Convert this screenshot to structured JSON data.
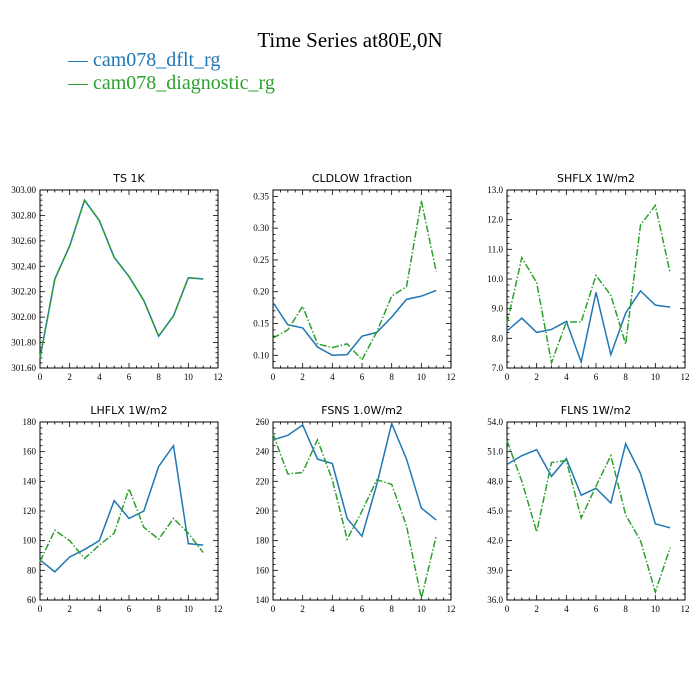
{
  "title": "Time Series at80E,0N",
  "legend": [
    {
      "label": "cam078_dflt_rg",
      "color": "#1f77b4",
      "dash": "solid"
    },
    {
      "label": "cam078_diagnostic_rg",
      "color": "#2ca02c",
      "dash": "dashdot"
    }
  ],
  "chart_data": [
    {
      "type": "line",
      "title": "TS   1K",
      "x": [
        0,
        1,
        2,
        3,
        4,
        5,
        6,
        7,
        8,
        9,
        10,
        11
      ],
      "xlim": [
        0,
        12
      ],
      "xticks": [
        0,
        2,
        4,
        6,
        8,
        10,
        12
      ],
      "ylim": [
        301.6,
        303.0
      ],
      "yticks": [
        301.6,
        301.8,
        302.0,
        302.2,
        302.4,
        302.6,
        302.8,
        303.0
      ],
      "ytick_labels": [
        "301.60",
        "301.80",
        "302.00",
        "302.20",
        "302.40",
        "302.60",
        "302.80",
        "303.00"
      ],
      "series": [
        {
          "name": "cam078_dflt_rg",
          "values": [
            301.68,
            302.3,
            302.56,
            302.92,
            302.76,
            302.47,
            302.32,
            302.13,
            301.85,
            302.01,
            302.31,
            302.3
          ]
        },
        {
          "name": "cam078_diagnostic_rg",
          "values": [
            301.68,
            302.3,
            302.56,
            302.92,
            302.76,
            302.47,
            302.32,
            302.13,
            301.85,
            302.01,
            302.31,
            302.3
          ]
        }
      ]
    },
    {
      "type": "line",
      "title": "CLDLOW   1fraction",
      "x": [
        0,
        1,
        2,
        3,
        4,
        5,
        6,
        7,
        8,
        9,
        10,
        11
      ],
      "xlim": [
        0,
        12
      ],
      "xticks": [
        0,
        2,
        4,
        6,
        8,
        10,
        12
      ],
      "ylim": [
        0.08,
        0.36
      ],
      "yticks": [
        0.1,
        0.15,
        0.2,
        0.25,
        0.3,
        0.35
      ],
      "ytick_labels": [
        "0.10",
        "0.15",
        "0.20",
        "0.25",
        "0.30",
        "0.35"
      ],
      "series": [
        {
          "name": "cam078_dflt_rg",
          "values": [
            0.183,
            0.148,
            0.143,
            0.113,
            0.1,
            0.101,
            0.13,
            0.136,
            0.16,
            0.188,
            0.193,
            0.202
          ]
        },
        {
          "name": "cam078_diagnostic_rg",
          "values": [
            0.127,
            0.14,
            0.177,
            0.118,
            0.112,
            0.118,
            0.093,
            0.137,
            0.193,
            0.208,
            0.343,
            0.232
          ]
        }
      ]
    },
    {
      "type": "line",
      "title": "SHFLX   1W/m2",
      "x": [
        0,
        1,
        2,
        3,
        4,
        5,
        6,
        7,
        8,
        9,
        10,
        11
      ],
      "xlim": [
        0,
        12
      ],
      "xticks": [
        0,
        2,
        4,
        6,
        8,
        10,
        12
      ],
      "ylim": [
        7.0,
        13.0
      ],
      "yticks": [
        7.0,
        8.0,
        9.0,
        10.0,
        11.0,
        12.0,
        13.0
      ],
      "ytick_labels": [
        "7.0",
        "8.0",
        "9.0",
        "10.0",
        "11.0",
        "12.0",
        "13.0"
      ],
      "series": [
        {
          "name": "cam078_dflt_rg",
          "values": [
            8.25,
            8.68,
            8.2,
            8.3,
            8.57,
            7.2,
            9.55,
            7.45,
            8.85,
            9.6,
            9.12,
            9.05
          ]
        },
        {
          "name": "cam078_diagnostic_rg",
          "values": [
            8.5,
            10.72,
            9.88,
            7.18,
            8.55,
            8.55,
            10.12,
            9.45,
            7.8,
            11.82,
            12.48,
            10.2
          ]
        }
      ]
    },
    {
      "type": "line",
      "title": "LHFLX   1W/m2",
      "x": [
        0,
        1,
        2,
        3,
        4,
        5,
        6,
        7,
        8,
        9,
        10,
        11
      ],
      "xlim": [
        0,
        12
      ],
      "xticks": [
        0,
        2,
        4,
        6,
        8,
        10,
        12
      ],
      "ylim": [
        60,
        180
      ],
      "yticks": [
        60,
        80,
        100,
        120,
        140,
        160,
        180
      ],
      "ytick_labels": [
        "60",
        "80",
        "100",
        "120",
        "140",
        "160",
        "180"
      ],
      "series": [
        {
          "name": "cam078_dflt_rg",
          "values": [
            87,
            79,
            89,
            94,
            100,
            127,
            115,
            120,
            150,
            164,
            98,
            97
          ]
        },
        {
          "name": "cam078_diagnostic_rg",
          "values": [
            86,
            107,
            100,
            88,
            97,
            105,
            135,
            109,
            101,
            115,
            105,
            92
          ]
        }
      ]
    },
    {
      "type": "line",
      "title": "FSNS   1.0W/m2",
      "x": [
        0,
        1,
        2,
        3,
        4,
        5,
        6,
        7,
        8,
        9,
        10,
        11
      ],
      "xlim": [
        0,
        12
      ],
      "xticks": [
        0,
        2,
        4,
        6,
        8,
        10,
        12
      ],
      "ylim": [
        140,
        260
      ],
      "yticks": [
        140,
        160,
        180,
        200,
        220,
        240,
        260
      ],
      "ytick_labels": [
        "140",
        "160",
        "180",
        "200",
        "220",
        "240",
        "260"
      ],
      "series": [
        {
          "name": "cam078_dflt_rg",
          "values": [
            248,
            251,
            258,
            235,
            232,
            195,
            183,
            218,
            259,
            235,
            202,
            194
          ]
        },
        {
          "name": "cam078_diagnostic_rg",
          "values": [
            252,
            225,
            226,
            248,
            221,
            181,
            200,
            221,
            218,
            190,
            141,
            183
          ]
        }
      ]
    },
    {
      "type": "line",
      "title": "FLNS   1W/m2",
      "x": [
        0,
        1,
        2,
        3,
        4,
        5,
        6,
        7,
        8,
        9,
        10,
        11
      ],
      "xlim": [
        0,
        12
      ],
      "xticks": [
        0,
        2,
        4,
        6,
        8,
        10,
        12
      ],
      "ylim": [
        36.0,
        54.0
      ],
      "yticks": [
        36.0,
        39.0,
        42.0,
        45.0,
        48.0,
        51.0,
        54.0
      ],
      "ytick_labels": [
        "36.0",
        "39.0",
        "42.0",
        "45.0",
        "48.0",
        "51.0",
        "54.0"
      ],
      "series": [
        {
          "name": "cam078_dflt_rg",
          "values": [
            49.7,
            50.6,
            51.2,
            48.5,
            50.3,
            46.6,
            47.3,
            45.8,
            51.8,
            48.8,
            43.7,
            43.3
          ]
        },
        {
          "name": "cam078_diagnostic_rg",
          "values": [
            52.1,
            48.0,
            42.9,
            49.9,
            50.1,
            44.3,
            47.5,
            50.6,
            44.6,
            42.0,
            36.8,
            41.3
          ]
        }
      ]
    }
  ]
}
